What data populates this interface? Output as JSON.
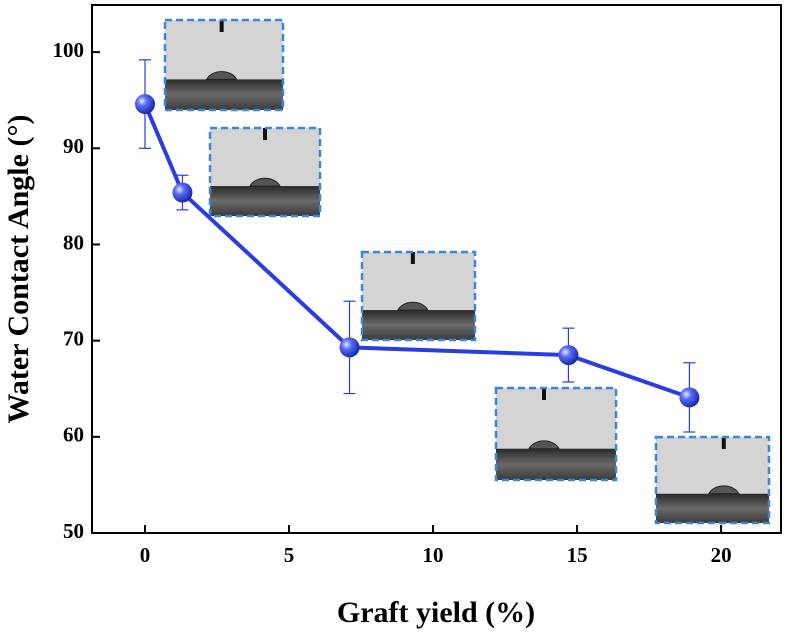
{
  "chart_data": {
    "type": "line",
    "xlabel": "Graft yield (%)",
    "ylabel": "Water Contact Angle (°)",
    "x": [
      0,
      1.3,
      7.1,
      14.7,
      18.9
    ],
    "values": [
      94.6,
      85.4,
      69.3,
      68.5,
      64.1
    ],
    "errors": [
      4.6,
      1.8,
      4.8,
      2.8,
      3.6
    ],
    "color": "#2b3de0",
    "xlim": [
      -1.84,
      22.08
    ],
    "xticks": [
      0,
      5,
      10,
      15,
      20
    ],
    "ylim": [
      50,
      104.9
    ],
    "yticks": [
      50,
      60,
      70,
      80,
      90,
      100
    ]
  }
}
